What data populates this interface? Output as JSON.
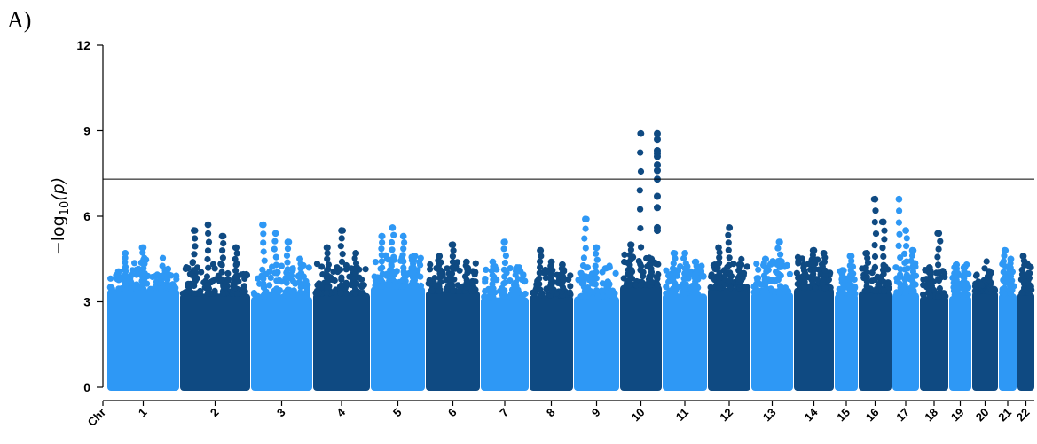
{
  "panel_label": "A)",
  "chart_data": {
    "type": "scatter",
    "title": "",
    "xlabel": "",
    "ylabel": "−log10(p)",
    "ylabel_parts": {
      "prefix": "−log",
      "subscript": "10",
      "suffix": "(p)"
    },
    "x_axis_first_label": "Chr",
    "ylim": [
      0,
      12
    ],
    "yticks": [
      0,
      3,
      6,
      9,
      12
    ],
    "significance_threshold": 7.3,
    "colors": {
      "light": "#2e98f5",
      "dark": "#0f4a82",
      "threshold_line": "#000000"
    },
    "chromosomes": [
      {
        "name": "1",
        "color": "light",
        "peaks": [
          4.7,
          4.9,
          3.9
        ]
      },
      {
        "name": "2",
        "color": "dark",
        "peaks": [
          5.5,
          5.7,
          5.3,
          4.9
        ]
      },
      {
        "name": "3",
        "color": "light",
        "peaks": [
          5.7,
          5.4,
          5.1,
          4.5
        ]
      },
      {
        "name": "4",
        "color": "dark",
        "peaks": [
          4.9,
          5.5,
          4.7
        ]
      },
      {
        "name": "5",
        "color": "light",
        "peaks": [
          5.3,
          5.6,
          5.3,
          4.6
        ]
      },
      {
        "name": "6",
        "color": "dark",
        "peaks": [
          4.6,
          5.0,
          4.4
        ]
      },
      {
        "name": "7",
        "color": "light",
        "peaks": [
          4.4,
          5.1,
          4.2
        ]
      },
      {
        "name": "8",
        "color": "dark",
        "peaks": [
          4.8,
          4.4,
          4.3
        ]
      },
      {
        "name": "9",
        "color": "light",
        "peaks": [
          5.9,
          4.9,
          3.7
        ]
      },
      {
        "name": "10",
        "color": "dark",
        "peaks": [
          5.0,
          8.9,
          4.5
        ]
      },
      {
        "name": "11",
        "color": "light",
        "peaks": [
          4.7,
          4.7,
          4.4
        ]
      },
      {
        "name": "12",
        "color": "dark",
        "peaks": [
          4.9,
          5.6,
          4.3
        ]
      },
      {
        "name": "13",
        "color": "light",
        "peaks": [
          4.5,
          5.1
        ]
      },
      {
        "name": "14",
        "color": "dark",
        "peaks": [
          4.3,
          4.8,
          4.7
        ]
      },
      {
        "name": "15",
        "color": "light",
        "peaks": [
          4.1,
          4.6
        ]
      },
      {
        "name": "16",
        "color": "dark",
        "peaks": [
          4.7,
          6.6,
          5.8
        ]
      },
      {
        "name": "17",
        "color": "light",
        "peaks": [
          6.6,
          5.5,
          4.8
        ]
      },
      {
        "name": "18",
        "color": "dark",
        "peaks": [
          4.2,
          5.4
        ]
      },
      {
        "name": "19",
        "color": "light",
        "peaks": [
          4.3,
          4.2
        ]
      },
      {
        "name": "20",
        "color": "dark",
        "peaks": [
          3.6,
          4.0
        ]
      },
      {
        "name": "21",
        "color": "light",
        "peaks": [
          4.8,
          4.5
        ]
      },
      {
        "name": "22",
        "color": "dark",
        "peaks": [
          4.6,
          4.0
        ]
      }
    ],
    "highlighted_hits": {
      "chromosome": "10",
      "values": [
        8.9,
        8.7,
        8.3,
        8.2,
        8.1,
        7.8,
        7.6,
        7.3,
        6.7,
        6.3,
        5.6,
        5.5
      ]
    }
  }
}
